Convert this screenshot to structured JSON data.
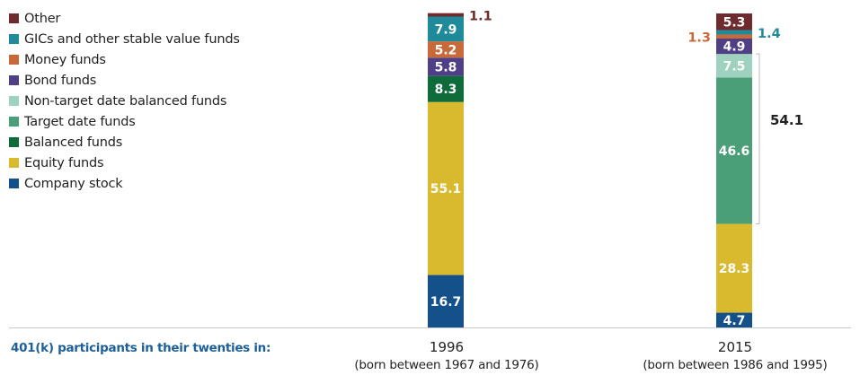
{
  "colors": {
    "other": "#6e2a2c",
    "gics": "#1f8a9a",
    "money": "#c8693a",
    "bond": "#4f3f87",
    "nontarget": "#9ed2bf",
    "target": "#4a9f78",
    "balanced": "#0f6b3a",
    "equity": "#d9b92e",
    "company": "#14508a"
  },
  "chart_data": {
    "type": "bar",
    "stacked": true,
    "categories": [
      "1996",
      "2015"
    ],
    "category_subtitles": [
      "(born between 1967 and 1976)",
      "(born between 1986 and 1995)"
    ],
    "row_label": "401(k) participants in their twenties in:",
    "series": [
      {
        "name": "Company stock",
        "key": "company",
        "values": [
          16.7,
          4.7
        ]
      },
      {
        "name": "Equity funds",
        "key": "equity",
        "values": [
          55.1,
          28.3
        ]
      },
      {
        "name": "Balanced funds",
        "key": "balanced",
        "values": [
          8.3,
          null
        ]
      },
      {
        "name": "Target date funds",
        "key": "target",
        "values": [
          null,
          46.6
        ]
      },
      {
        "name": "Non-target date balanced funds",
        "key": "nontarget",
        "values": [
          null,
          7.5
        ]
      },
      {
        "name": "Bond funds",
        "key": "bond",
        "values": [
          5.8,
          4.9
        ]
      },
      {
        "name": "Money funds",
        "key": "money",
        "values": [
          5.2,
          1.3
        ]
      },
      {
        "name": "GICs and other stable value funds",
        "key": "gics",
        "values": [
          7.9,
          1.4
        ]
      },
      {
        "name": "Other",
        "key": "other",
        "values": [
          1.1,
          5.3
        ]
      }
    ],
    "legend": [
      {
        "name": "Other",
        "key": "other"
      },
      {
        "name": "GICs and other stable value funds",
        "key": "gics"
      },
      {
        "name": "Money funds",
        "key": "money"
      },
      {
        "name": "Bond funds",
        "key": "bond"
      },
      {
        "name": "Non-target date balanced funds",
        "key": "nontarget"
      },
      {
        "name": "Target date funds",
        "key": "target"
      },
      {
        "name": "Balanced funds",
        "key": "balanced"
      },
      {
        "name": "Equity funds",
        "key": "equity"
      },
      {
        "name": "Company stock",
        "key": "company"
      }
    ],
    "bracket": {
      "category": "2015",
      "label": "54.1",
      "from": "Target date funds",
      "to": "Non-target date balanced funds"
    },
    "ylim": [
      0,
      100
    ],
    "grid": false,
    "legend_position": "top-left"
  }
}
